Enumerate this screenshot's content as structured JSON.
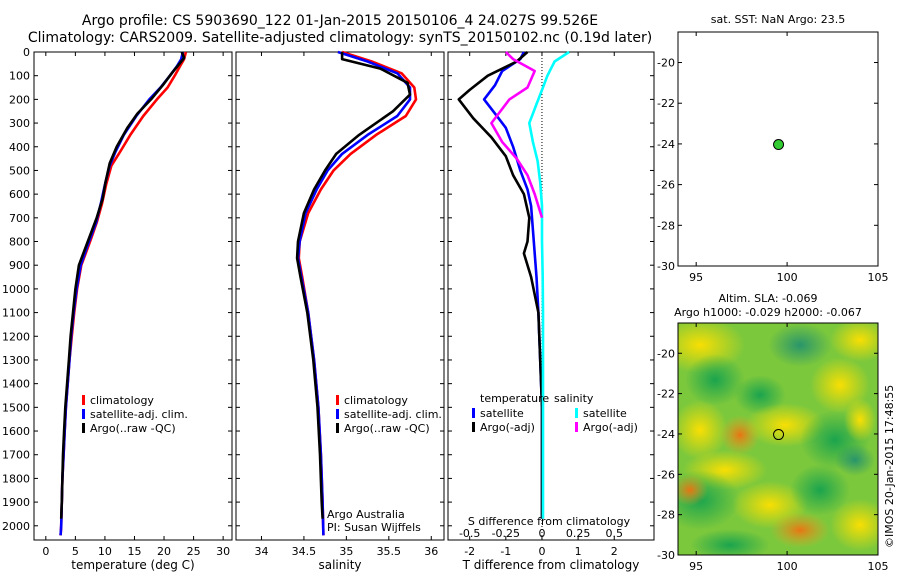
{
  "header": {
    "line1": "Argo profile: CS 5903690_122 01-Jan-2015 20150106_4 24.027S 99.526E",
    "line2": "Climatology: CARS2009. Satellite-adjusted climatology: synTS_20150102.nc (0.19d later)"
  },
  "colors": {
    "climatology": "#ff0000",
    "satellite": "#0000ff",
    "argo": "#000000",
    "sal_satellite": "#00ffff",
    "sal_argo": "#ff00ff",
    "marker": "#33cc33"
  },
  "chart_data": [
    {
      "type": "line",
      "id": "temperature",
      "xlabel": "temperature (deg C)",
      "ylabel": "",
      "xlim": [
        -2,
        31.5
      ],
      "ylim": [
        2060,
        0
      ],
      "xticks": [
        0,
        5,
        10,
        15,
        20,
        25,
        30
      ],
      "yticks": [
        0,
        100,
        200,
        300,
        400,
        500,
        600,
        700,
        800,
        900,
        1000,
        1100,
        1200,
        1300,
        1400,
        1500,
        1600,
        1700,
        1800,
        1900,
        2000
      ],
      "legend": {
        "placement": "bottom-left",
        "labels": [
          "climatology",
          "satellite-adj. clim.",
          "Argo(..raw -QC)"
        ]
      },
      "series": [
        {
          "name": "climatology",
          "color": "#ff0000",
          "points": [
            [
              23.7,
              0
            ],
            [
              23.4,
              30
            ],
            [
              22.7,
              60
            ],
            [
              21.8,
              100
            ],
            [
              20.6,
              150
            ],
            [
              18.8,
              200
            ],
            [
              16.5,
              270
            ],
            [
              14.3,
              350
            ],
            [
              12.6,
              420
            ],
            [
              11.1,
              480
            ],
            [
              10.2,
              560
            ],
            [
              9.5,
              640
            ],
            [
              8.6,
              720
            ],
            [
              7.5,
              800
            ],
            [
              6.0,
              900
            ],
            [
              5.3,
              1000
            ],
            [
              4.8,
              1100
            ],
            [
              4.4,
              1200
            ],
            [
              4.0,
              1300
            ],
            [
              3.7,
              1400
            ],
            [
              3.4,
              1500
            ],
            [
              3.2,
              1600
            ],
            [
              3.0,
              1700
            ],
            [
              2.8,
              1800
            ],
            [
              2.7,
              1900
            ],
            [
              2.6,
              2000
            ],
            [
              2.5,
              2040
            ]
          ]
        },
        {
          "name": "satellite-adj. clim.",
          "color": "#0000ff",
          "points": [
            [
              23.2,
              0
            ],
            [
              22.9,
              30
            ],
            [
              22.2,
              60
            ],
            [
              21.0,
              100
            ],
            [
              19.4,
              150
            ],
            [
              17.5,
              200
            ],
            [
              15.3,
              270
            ],
            [
              13.2,
              350
            ],
            [
              11.8,
              420
            ],
            [
              10.8,
              480
            ],
            [
              10.0,
              560
            ],
            [
              9.3,
              640
            ],
            [
              8.5,
              720
            ],
            [
              7.3,
              800
            ],
            [
              5.9,
              900
            ],
            [
              5.2,
              1000
            ],
            [
              4.7,
              1100
            ],
            [
              4.3,
              1200
            ],
            [
              4.0,
              1300
            ],
            [
              3.7,
              1400
            ],
            [
              3.4,
              1500
            ],
            [
              3.2,
              1600
            ],
            [
              3.0,
              1700
            ],
            [
              2.8,
              1800
            ],
            [
              2.7,
              1900
            ],
            [
              2.6,
              2000
            ],
            [
              2.5,
              2040
            ]
          ]
        },
        {
          "name": "Argo(..raw -QC)",
          "color": "#000000",
          "points": [
            [
              23.0,
              0
            ],
            [
              23.4,
              25
            ],
            [
              22.6,
              50
            ],
            [
              21.3,
              90
            ],
            [
              19.8,
              140
            ],
            [
              17.8,
              200
            ],
            [
              15.5,
              260
            ],
            [
              13.8,
              320
            ],
            [
              12.0,
              400
            ],
            [
              10.8,
              470
            ],
            [
              10.1,
              550
            ],
            [
              9.6,
              620
            ],
            [
              8.6,
              700
            ],
            [
              7.1,
              800
            ],
            [
              5.6,
              900
            ],
            [
              5.0,
              1000
            ],
            [
              4.6,
              1100
            ],
            [
              4.2,
              1200
            ],
            [
              3.9,
              1300
            ],
            [
              3.6,
              1400
            ],
            [
              3.3,
              1500
            ],
            [
              3.1,
              1600
            ],
            [
              2.9,
              1700
            ],
            [
              2.8,
              1800
            ],
            [
              2.7,
              1900
            ],
            [
              2.6,
              1970
            ]
          ]
        }
      ]
    },
    {
      "type": "line",
      "id": "salinity",
      "xlabel": "salinity",
      "ylabel": "",
      "xlim": [
        33.7,
        36.15
      ],
      "ylim": [
        2060,
        0
      ],
      "xticks": [
        34,
        34.5,
        35,
        35.5,
        36
      ],
      "xtick_labels": [
        "34",
        "34.5",
        "35",
        "35.5",
        "36"
      ],
      "legend": {
        "placement": "bottom-right",
        "labels": [
          "climatology",
          "satellite-adj. clim.",
          "Argo(..raw -QC)"
        ]
      },
      "annotations": [
        "Argo Australia",
        "PI: Susan Wijffels"
      ],
      "series": [
        {
          "name": "climatology",
          "color": "#ff0000",
          "points": [
            [
              34.95,
              0
            ],
            [
              35.3,
              40
            ],
            [
              35.65,
              90
            ],
            [
              35.8,
              150
            ],
            [
              35.82,
              200
            ],
            [
              35.7,
              270
            ],
            [
              35.35,
              350
            ],
            [
              35.05,
              430
            ],
            [
              34.85,
              500
            ],
            [
              34.7,
              580
            ],
            [
              34.55,
              680
            ],
            [
              34.45,
              800
            ],
            [
              34.44,
              870
            ],
            [
              34.48,
              950
            ],
            [
              34.55,
              1100
            ],
            [
              34.62,
              1300
            ],
            [
              34.67,
              1500
            ],
            [
              34.7,
              1700
            ],
            [
              34.72,
              1900
            ],
            [
              34.73,
              2040
            ]
          ]
        },
        {
          "name": "satellite-adj. clim.",
          "color": "#0000ff",
          "points": [
            [
              34.9,
              0
            ],
            [
              35.25,
              40
            ],
            [
              35.6,
              90
            ],
            [
              35.75,
              150
            ],
            [
              35.75,
              200
            ],
            [
              35.6,
              270
            ],
            [
              35.25,
              350
            ],
            [
              34.95,
              430
            ],
            [
              34.78,
              500
            ],
            [
              34.65,
              580
            ],
            [
              34.52,
              680
            ],
            [
              34.45,
              800
            ],
            [
              34.43,
              870
            ],
            [
              34.47,
              950
            ],
            [
              34.55,
              1100
            ],
            [
              34.62,
              1300
            ],
            [
              34.67,
              1500
            ],
            [
              34.7,
              1700
            ],
            [
              34.72,
              1900
            ],
            [
              34.73,
              2040
            ]
          ]
        },
        {
          "name": "Argo(..raw -QC)",
          "color": "#000000",
          "points": [
            [
              34.95,
              0
            ],
            [
              34.95,
              30
            ],
            [
              35.4,
              70
            ],
            [
              35.72,
              130
            ],
            [
              35.75,
              180
            ],
            [
              35.55,
              250
            ],
            [
              35.15,
              350
            ],
            [
              34.88,
              430
            ],
            [
              34.75,
              500
            ],
            [
              34.62,
              580
            ],
            [
              34.5,
              680
            ],
            [
              34.43,
              800
            ],
            [
              34.42,
              870
            ],
            [
              34.46,
              950
            ],
            [
              34.54,
              1100
            ],
            [
              34.61,
              1300
            ],
            [
              34.66,
              1500
            ],
            [
              34.69,
              1700
            ],
            [
              34.71,
              1900
            ],
            [
              34.72,
              1970
            ]
          ]
        }
      ]
    },
    {
      "type": "line",
      "id": "differences",
      "xlabel": "T difference from climatology",
      "ylabel": "",
      "title_bottom": "S difference from climatology",
      "xlim": [
        -2.6,
        3.1
      ],
      "ylim": [
        2060,
        0
      ],
      "xticks": [
        -2,
        -1,
        0,
        1,
        2
      ],
      "s_ticks": [
        -0.5,
        -0.25,
        0,
        0.25,
        0.5
      ],
      "s_tick_labels": [
        "-0.5",
        "-0.25",
        "0",
        "0.25",
        "0.5"
      ],
      "legend": {
        "placement": "bottom",
        "groups": [
          {
            "title": "temperature",
            "labels": [
              "satellite",
              "Argo(-adj)"
            ]
          },
          {
            "title": "salinity",
            "labels": [
              "satellite",
              "Argo(-adj)"
            ]
          }
        ]
      },
      "series": [
        {
          "name": "satellite",
          "group": "temperature",
          "color": "#0000ff",
          "points": [
            [
              -0.5,
              0
            ],
            [
              -0.6,
              30
            ],
            [
              -1.1,
              80
            ],
            [
              -1.3,
              140
            ],
            [
              -1.6,
              200
            ],
            [
              -1.3,
              260
            ],
            [
              -1.0,
              320
            ],
            [
              -0.8,
              400
            ],
            [
              -0.6,
              500
            ],
            [
              -0.4,
              580
            ],
            [
              -0.3,
              650
            ],
            [
              -0.25,
              750
            ],
            [
              -0.2,
              850
            ],
            [
              -0.15,
              950
            ],
            [
              -0.1,
              1100
            ],
            [
              -0.05,
              1300
            ],
            [
              0,
              1500
            ],
            [
              0,
              1700
            ],
            [
              0,
              1900
            ],
            [
              0,
              1970
            ]
          ]
        },
        {
          "name": "Argo(-adj)",
          "group": "temperature",
          "color": "#000000",
          "points": [
            [
              -0.4,
              0
            ],
            [
              -0.7,
              40
            ],
            [
              -1.5,
              100
            ],
            [
              -2.0,
              160
            ],
            [
              -2.3,
              200
            ],
            [
              -1.9,
              280
            ],
            [
              -1.4,
              360
            ],
            [
              -1.0,
              440
            ],
            [
              -0.8,
              520
            ],
            [
              -0.5,
              600
            ],
            [
              -0.35,
              700
            ],
            [
              -0.4,
              800
            ],
            [
              -0.5,
              850
            ],
            [
              -0.3,
              950
            ],
            [
              -0.1,
              1100
            ],
            [
              -0.05,
              1300
            ],
            [
              0,
              1500
            ],
            [
              0,
              1700
            ],
            [
              0,
              1900
            ],
            [
              0,
              1970
            ]
          ]
        },
        {
          "name": "satellite",
          "group": "salinity",
          "color": "#00ffff",
          "points": [
            [
              0.75,
              0
            ],
            [
              0.35,
              40
            ],
            [
              0.15,
              100
            ],
            [
              0.0,
              160
            ],
            [
              -0.15,
              220
            ],
            [
              -0.35,
              300
            ],
            [
              -0.25,
              380
            ],
            [
              -0.12,
              460
            ],
            [
              -0.05,
              550
            ],
            [
              0.0,
              650
            ],
            [
              0.0,
              800
            ],
            [
              0.02,
              950
            ],
            [
              0.03,
              1100
            ],
            [
              0.03,
              1300
            ],
            [
              0.03,
              1500
            ],
            [
              0.03,
              1700
            ],
            [
              0.03,
              1900
            ],
            [
              0.03,
              1970
            ]
          ]
        },
        {
          "name": "Argo(-adj)",
          "group": "salinity",
          "color": "#ff00ff",
          "points": [
            [
              -1.0,
              0
            ],
            [
              -0.8,
              30
            ],
            [
              -0.2,
              80
            ],
            [
              -0.4,
              150
            ],
            [
              -0.9,
              200
            ],
            [
              -1.2,
              260
            ],
            [
              -1.4,
              300
            ],
            [
              -1.1,
              380
            ],
            [
              -0.7,
              450
            ],
            [
              -0.4,
              520
            ],
            [
              -0.2,
              600
            ],
            [
              0.0,
              700
            ]
          ]
        }
      ]
    },
    {
      "type": "scatter",
      "id": "sst-map",
      "title": "sat. SST: NaN Argo: 23.5",
      "xlim": [
        94,
        105
      ],
      "ylim": [
        -30,
        -18.5
      ],
      "xticks": [
        95,
        100,
        105
      ],
      "yticks": [
        -30,
        -28,
        -26,
        -24,
        -22,
        -20
      ],
      "points": [
        [
          99.53,
          -24.03
        ]
      ]
    },
    {
      "type": "heatmap",
      "id": "sla-map",
      "title_lines": [
        "Altim. SLA: -0.069",
        "Argo h1000: -0.029 h2000: -0.067"
      ],
      "xlim": [
        94,
        105
      ],
      "ylim": [
        -30,
        -18.5
      ],
      "xticks": [
        95,
        100,
        105
      ],
      "yticks": [
        -30,
        -28,
        -26,
        -24,
        -22,
        -20
      ],
      "points": [
        [
          99.53,
          -24.03
        ]
      ]
    }
  ],
  "side_label": "©IMOS 20-Jan-2015 17:48:55"
}
